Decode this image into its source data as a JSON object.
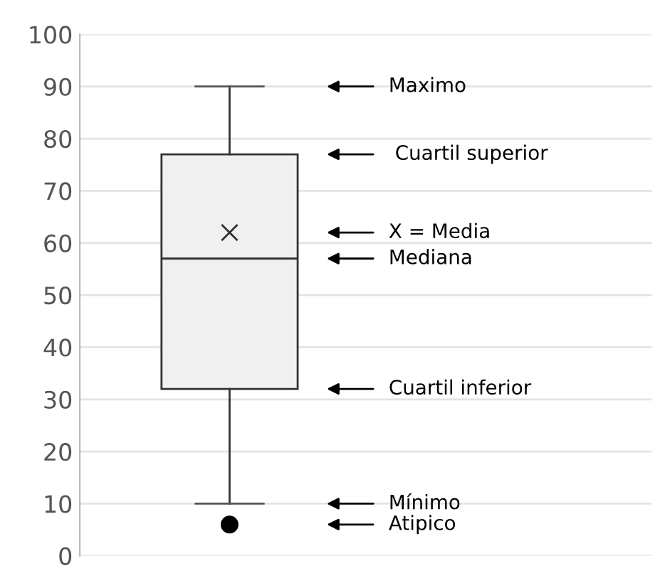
{
  "chart_data": {
    "type": "box",
    "categories": [
      null
    ],
    "boxes": [
      {
        "low": 10,
        "q1": 32,
        "median": 57,
        "q3": 77,
        "high": 90,
        "mean": 62,
        "outliers": [
          6
        ]
      }
    ],
    "color": "#f0f0f0",
    "ylim": [
      0,
      100
    ],
    "yticks": [
      0,
      10,
      20,
      30,
      40,
      50,
      60,
      70,
      80,
      90,
      100
    ],
    "grid": "y",
    "annotations": [
      "Maximo",
      " Cuartil superior",
      "X = Media",
      "Mediana",
      "Cuartil inferior",
      "Mínimo",
      "Atipico"
    ]
  }
}
